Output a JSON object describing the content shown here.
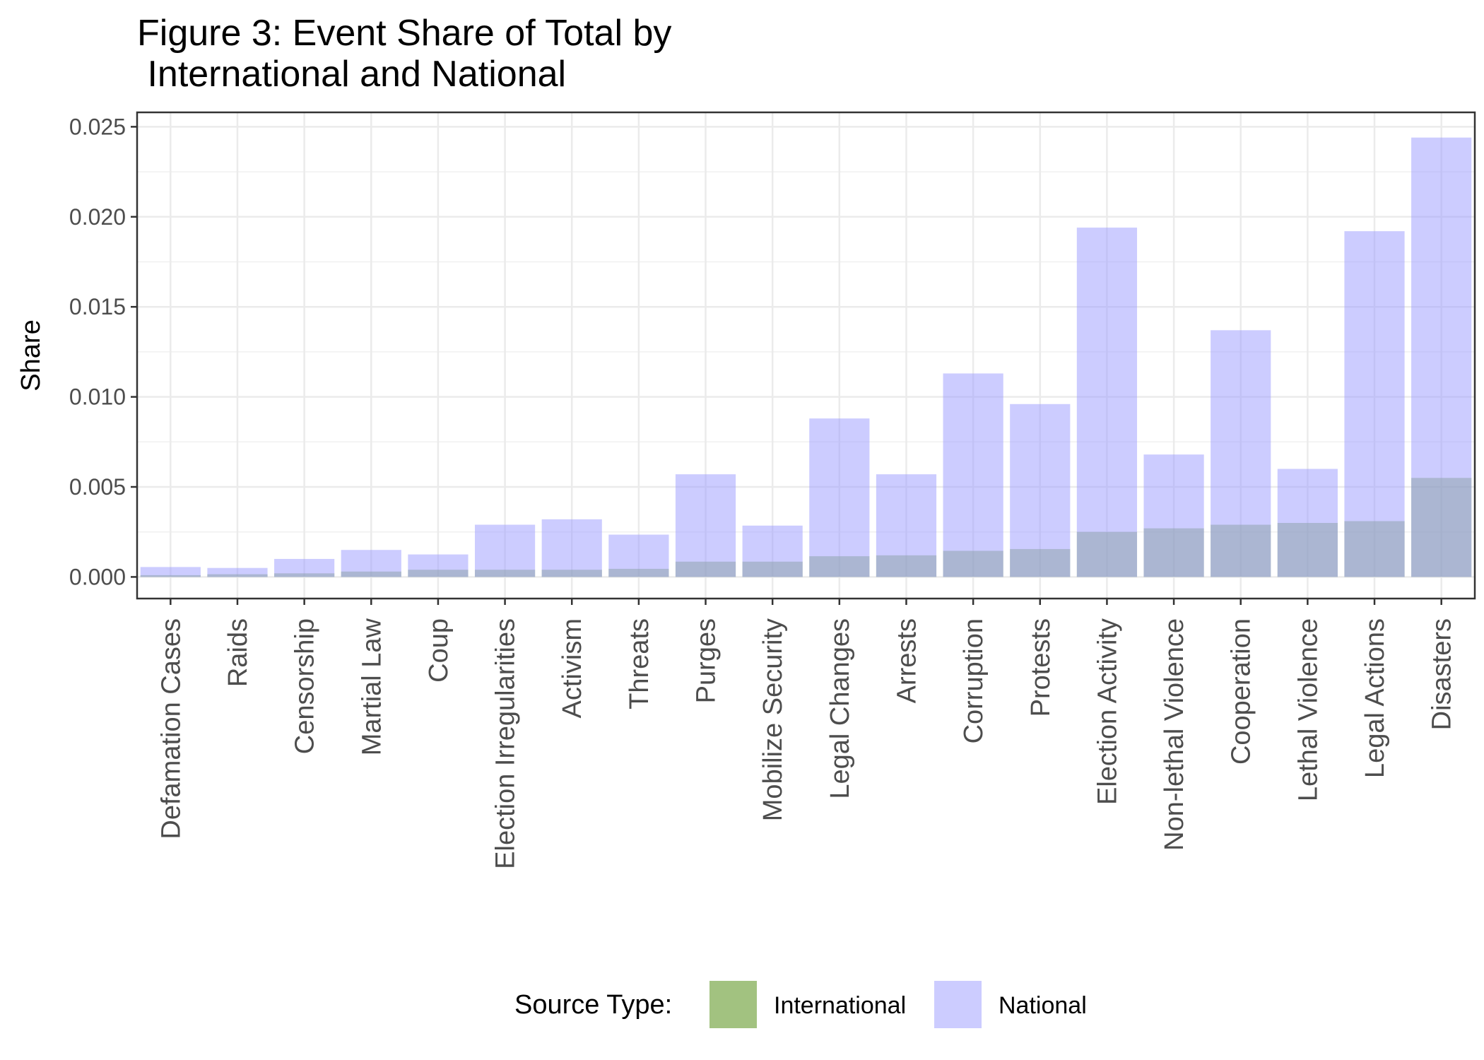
{
  "chart_data": {
    "type": "bar",
    "title_lines": [
      "Figure 3: Event Share of Total by",
      " International and National"
    ],
    "xlabel": "",
    "ylabel": "Share",
    "ylim": [
      -0.0012,
      0.0258
    ],
    "yticks": [
      "0.000",
      "0.005",
      "0.010",
      "0.015",
      "0.020",
      "0.025"
    ],
    "ytick_values": [
      0,
      0.005,
      0.01,
      0.015,
      0.02,
      0.025
    ],
    "grid": true,
    "overlay": true,
    "categories": [
      "Defamation Cases",
      "Raids",
      "Censorship",
      "Martial Law",
      "Coup",
      "Election Irregularities",
      "Activism",
      "Threats",
      "Purges",
      "Mobilize Security",
      "Legal Changes",
      "Arrests",
      "Corruption",
      "Protests",
      "Election Activity",
      "Non-lethal Violence",
      "Cooperation",
      "Lethal Violence",
      "Legal Actions",
      "Disasters"
    ],
    "series": [
      {
        "name": "International",
        "color": "#7aa84a",
        "values": [
          0.0001,
          0.00015,
          0.0002,
          0.0003,
          0.0004,
          0.0004,
          0.0004,
          0.00045,
          0.00085,
          0.00085,
          0.00115,
          0.0012,
          0.00145,
          0.00155,
          0.0025,
          0.0027,
          0.0029,
          0.003,
          0.0031,
          0.0055
        ]
      },
      {
        "name": "National",
        "color": "#9999ff",
        "values": [
          0.00055,
          0.0005,
          0.001,
          0.0015,
          0.00125,
          0.0029,
          0.0032,
          0.00235,
          0.0057,
          0.00285,
          0.0088,
          0.0057,
          0.0113,
          0.0096,
          0.0194,
          0.0068,
          0.0137,
          0.006,
          0.0192,
          0.0244
        ]
      }
    ],
    "legend": {
      "title": "Source Type:",
      "placement": "bottom"
    }
  }
}
